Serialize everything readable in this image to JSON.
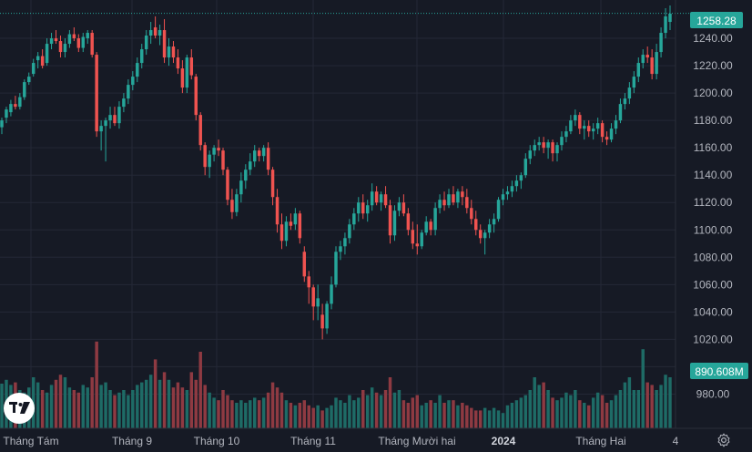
{
  "chart_data": {
    "type": "candlestick",
    "title": "",
    "xlabel": "",
    "ylabel": "",
    "ylim": [
      955,
      1268
    ],
    "y_ticks": [
      "980.00",
      "1000.00",
      "1020.00",
      "1040.00",
      "1060.00",
      "1080.00",
      "1100.00",
      "1120.00",
      "1140.00",
      "1160.00",
      "1180.00",
      "1200.00",
      "1220.00",
      "1240.00"
    ],
    "x_ticks": [
      "Tháng Tám",
      "Tháng 9",
      "Tháng 10",
      "Tháng 11",
      "Tháng Mười hai",
      "2024",
      "Tháng Hai",
      "4"
    ],
    "last_price": "1258.28",
    "last_volume": "890.608M",
    "grid": true,
    "colors": {
      "up": "#26a69a",
      "down": "#ef5350",
      "up_volume": "#1e6b66",
      "down_volume": "#8e3a42",
      "price_tag": "#26a69a",
      "price_line": "#26a69a"
    },
    "ohlc": [
      [
        1175,
        1182,
        1170,
        1180
      ],
      [
        1182,
        1190,
        1178,
        1188
      ],
      [
        1186,
        1195,
        1183,
        1192
      ],
      [
        1192,
        1198,
        1188,
        1190
      ],
      [
        1190,
        1200,
        1188,
        1197
      ],
      [
        1197,
        1210,
        1195,
        1208
      ],
      [
        1208,
        1215,
        1206,
        1212
      ],
      [
        1214,
        1225,
        1212,
        1222
      ],
      [
        1224,
        1230,
        1218,
        1227
      ],
      [
        1227,
        1232,
        1218,
        1220
      ],
      [
        1222,
        1240,
        1220,
        1236
      ],
      [
        1236,
        1244,
        1232,
        1240
      ],
      [
        1240,
        1246,
        1236,
        1238
      ],
      [
        1238,
        1242,
        1226,
        1230
      ],
      [
        1230,
        1240,
        1226,
        1236
      ],
      [
        1236,
        1246,
        1233,
        1243
      ],
      [
        1243,
        1248,
        1238,
        1240
      ],
      [
        1240,
        1243,
        1230,
        1233
      ],
      [
        1233,
        1244,
        1230,
        1241
      ],
      [
        1240,
        1246,
        1236,
        1244
      ],
      [
        1244,
        1246,
        1226,
        1228
      ],
      [
        1228,
        1230,
        1168,
        1172
      ],
      [
        1172,
        1180,
        1158,
        1176
      ],
      [
        1176,
        1182,
        1150,
        1180
      ],
      [
        1180,
        1190,
        1174,
        1184
      ],
      [
        1184,
        1190,
        1176,
        1178
      ],
      [
        1178,
        1194,
        1174,
        1190
      ],
      [
        1190,
        1200,
        1186,
        1196
      ],
      [
        1196,
        1210,
        1192,
        1206
      ],
      [
        1206,
        1216,
        1202,
        1212
      ],
      [
        1212,
        1226,
        1208,
        1222
      ],
      [
        1222,
        1236,
        1218,
        1232
      ],
      [
        1232,
        1246,
        1228,
        1242
      ],
      [
        1242,
        1252,
        1236,
        1246
      ],
      [
        1248,
        1256,
        1240,
        1242
      ],
      [
        1242,
        1250,
        1235,
        1246
      ],
      [
        1246,
        1254,
        1222,
        1226
      ],
      [
        1226,
        1240,
        1220,
        1234
      ],
      [
        1234,
        1238,
        1222,
        1226
      ],
      [
        1226,
        1232,
        1214,
        1218
      ],
      [
        1218,
        1224,
        1200,
        1204
      ],
      [
        1204,
        1228,
        1200,
        1226
      ],
      [
        1226,
        1232,
        1210,
        1213
      ],
      [
        1212,
        1214,
        1180,
        1184
      ],
      [
        1184,
        1186,
        1158,
        1162
      ],
      [
        1162,
        1164,
        1140,
        1146
      ],
      [
        1146,
        1158,
        1138,
        1155
      ],
      [
        1155,
        1162,
        1150,
        1160
      ],
      [
        1160,
        1166,
        1154,
        1158
      ],
      [
        1158,
        1160,
        1140,
        1144
      ],
      [
        1144,
        1146,
        1118,
        1122
      ],
      [
        1122,
        1130,
        1108,
        1113
      ],
      [
        1113,
        1130,
        1110,
        1126
      ],
      [
        1126,
        1142,
        1120,
        1136
      ],
      [
        1136,
        1148,
        1130,
        1144
      ],
      [
        1144,
        1156,
        1140,
        1150
      ],
      [
        1150,
        1162,
        1146,
        1158
      ],
      [
        1158,
        1160,
        1150,
        1154
      ],
      [
        1154,
        1162,
        1150,
        1160
      ],
      [
        1160,
        1164,
        1140,
        1144
      ],
      [
        1144,
        1146,
        1118,
        1124
      ],
      [
        1124,
        1130,
        1098,
        1104
      ],
      [
        1104,
        1112,
        1086,
        1092
      ],
      [
        1092,
        1110,
        1088,
        1106
      ],
      [
        1106,
        1112,
        1100,
        1103
      ],
      [
        1104,
        1116,
        1100,
        1112
      ],
      [
        1112,
        1114,
        1090,
        1094
      ],
      [
        1084,
        1088,
        1062,
        1066
      ],
      [
        1066,
        1070,
        1046,
        1058
      ],
      [
        1058,
        1060,
        1034,
        1044
      ],
      [
        1044,
        1060,
        1034,
        1050
      ],
      [
        1038,
        1046,
        1020,
        1028
      ],
      [
        1028,
        1048,
        1024,
        1046
      ],
      [
        1046,
        1066,
        1042,
        1060
      ],
      [
        1060,
        1088,
        1058,
        1084
      ],
      [
        1084,
        1092,
        1078,
        1088
      ],
      [
        1088,
        1098,
        1082,
        1094
      ],
      [
        1094,
        1108,
        1090,
        1104
      ],
      [
        1104,
        1116,
        1100,
        1112
      ],
      [
        1112,
        1124,
        1106,
        1120
      ],
      [
        1120,
        1126,
        1108,
        1112
      ],
      [
        1112,
        1122,
        1106,
        1118
      ],
      [
        1118,
        1134,
        1114,
        1128
      ],
      [
        1128,
        1132,
        1118,
        1120
      ],
      [
        1120,
        1128,
        1114,
        1126
      ],
      [
        1126,
        1132,
        1116,
        1118
      ],
      [
        1118,
        1122,
        1090,
        1096
      ],
      [
        1096,
        1118,
        1092,
        1114
      ],
      [
        1114,
        1124,
        1110,
        1120
      ],
      [
        1120,
        1126,
        1110,
        1112
      ],
      [
        1112,
        1116,
        1096,
        1100
      ],
      [
        1100,
        1106,
        1086,
        1090
      ],
      [
        1090,
        1104,
        1082,
        1088
      ],
      [
        1088,
        1100,
        1086,
        1098
      ],
      [
        1098,
        1110,
        1096,
        1106
      ],
      [
        1106,
        1108,
        1096,
        1100
      ],
      [
        1100,
        1120,
        1096,
        1116
      ],
      [
        1116,
        1126,
        1112,
        1122
      ],
      [
        1122,
        1128,
        1114,
        1118
      ],
      [
        1118,
        1130,
        1116,
        1126
      ],
      [
        1126,
        1132,
        1118,
        1120
      ],
      [
        1120,
        1130,
        1116,
        1128
      ],
      [
        1128,
        1132,
        1118,
        1124
      ],
      [
        1124,
        1130,
        1112,
        1116
      ],
      [
        1116,
        1122,
        1104,
        1108
      ],
      [
        1108,
        1114,
        1096,
        1100
      ],
      [
        1100,
        1104,
        1090,
        1094
      ],
      [
        1094,
        1100,
        1082,
        1098
      ],
      [
        1098,
        1108,
        1094,
        1104
      ],
      [
        1104,
        1112,
        1098,
        1108
      ],
      [
        1108,
        1124,
        1106,
        1122
      ],
      [
        1122,
        1130,
        1118,
        1126
      ],
      [
        1126,
        1132,
        1122,
        1128
      ],
      [
        1128,
        1136,
        1124,
        1132
      ],
      [
        1132,
        1140,
        1128,
        1136
      ],
      [
        1136,
        1142,
        1130,
        1140
      ],
      [
        1140,
        1156,
        1138,
        1152
      ],
      [
        1152,
        1162,
        1148,
        1158
      ],
      [
        1158,
        1166,
        1154,
        1162
      ],
      [
        1162,
        1168,
        1158,
        1164
      ],
      [
        1164,
        1168,
        1156,
        1160
      ],
      [
        1160,
        1166,
        1152,
        1164
      ],
      [
        1164,
        1166,
        1150,
        1156
      ],
      [
        1156,
        1164,
        1150,
        1162
      ],
      [
        1162,
        1172,
        1158,
        1168
      ],
      [
        1168,
        1176,
        1164,
        1172
      ],
      [
        1172,
        1184,
        1170,
        1180
      ],
      [
        1180,
        1188,
        1176,
        1184
      ],
      [
        1184,
        1186,
        1170,
        1174
      ],
      [
        1174,
        1180,
        1166,
        1176
      ],
      [
        1176,
        1180,
        1168,
        1172
      ],
      [
        1172,
        1178,
        1166,
        1174
      ],
      [
        1174,
        1182,
        1170,
        1178
      ],
      [
        1178,
        1180,
        1164,
        1168
      ],
      [
        1168,
        1172,
        1162,
        1166
      ],
      [
        1166,
        1178,
        1164,
        1174
      ],
      [
        1174,
        1184,
        1170,
        1180
      ],
      [
        1180,
        1196,
        1178,
        1192
      ],
      [
        1192,
        1200,
        1188,
        1196
      ],
      [
        1196,
        1208,
        1192,
        1204
      ],
      [
        1204,
        1216,
        1200,
        1212
      ],
      [
        1212,
        1226,
        1208,
        1222
      ],
      [
        1222,
        1232,
        1218,
        1228
      ],
      [
        1228,
        1234,
        1222,
        1226
      ],
      [
        1226,
        1232,
        1210,
        1214
      ],
      [
        1214,
        1236,
        1210,
        1230
      ],
      [
        1230,
        1248,
        1226,
        1244
      ],
      [
        1244,
        1262,
        1240,
        1256
      ],
      [
        1252,
        1264,
        1246,
        1258
      ]
    ],
    "volume_pct": [
      0.35,
      0.38,
      0.34,
      0.36,
      0.3,
      0.28,
      0.32,
      0.4,
      0.36,
      0.3,
      0.28,
      0.34,
      0.38,
      0.42,
      0.4,
      0.32,
      0.3,
      0.28,
      0.34,
      0.32,
      0.4,
      0.68,
      0.34,
      0.36,
      0.3,
      0.26,
      0.28,
      0.3,
      0.26,
      0.3,
      0.34,
      0.36,
      0.38,
      0.42,
      0.54,
      0.38,
      0.44,
      0.38,
      0.32,
      0.36,
      0.32,
      0.3,
      0.44,
      0.38,
      0.6,
      0.34,
      0.28,
      0.24,
      0.22,
      0.3,
      0.26,
      0.22,
      0.2,
      0.22,
      0.2,
      0.22,
      0.24,
      0.22,
      0.24,
      0.28,
      0.36,
      0.32,
      0.28,
      0.22,
      0.2,
      0.18,
      0.2,
      0.22,
      0.18,
      0.16,
      0.18,
      0.14,
      0.16,
      0.18,
      0.24,
      0.22,
      0.2,
      0.26,
      0.22,
      0.24,
      0.3,
      0.26,
      0.32,
      0.28,
      0.26,
      0.3,
      0.4,
      0.28,
      0.3,
      0.22,
      0.2,
      0.24,
      0.26,
      0.18,
      0.2,
      0.22,
      0.2,
      0.26,
      0.2,
      0.22,
      0.22,
      0.18,
      0.2,
      0.18,
      0.16,
      0.14,
      0.14,
      0.16,
      0.14,
      0.16,
      0.14,
      0.12,
      0.18,
      0.2,
      0.22,
      0.24,
      0.26,
      0.3,
      0.4,
      0.34,
      0.36,
      0.3,
      0.24,
      0.22,
      0.24,
      0.28,
      0.26,
      0.3,
      0.22,
      0.2,
      0.18,
      0.24,
      0.28,
      0.26,
      0.2,
      0.22,
      0.26,
      0.3,
      0.36,
      0.4,
      0.3,
      0.3,
      0.62,
      0.36,
      0.34,
      0.3,
      0.34,
      0.42,
      0.4
    ]
  }
}
